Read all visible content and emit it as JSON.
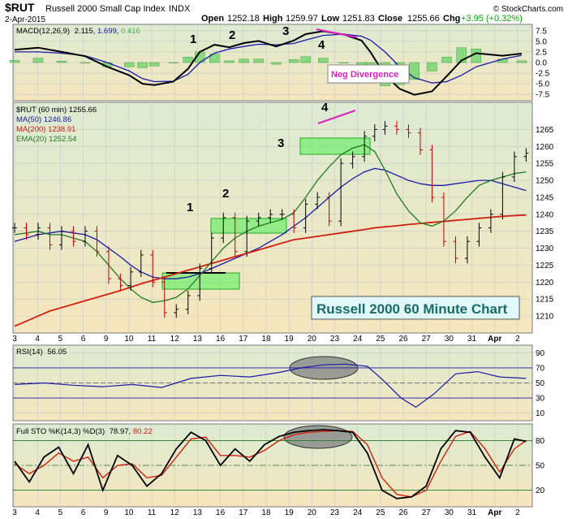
{
  "header": {
    "symbol": "$RUT",
    "name": "Russell 2000 Small Cap Index",
    "exchange": "INDX",
    "date": "2-Apr-2015",
    "open_label": "Open",
    "open": "1252.18",
    "high_label": "High",
    "high": "1259.97",
    "low_label": "Low",
    "low": "1251.83",
    "close_label": "Close",
    "close": "1255.66",
    "chg_label": "Chg",
    "chg": "+3.95 (+0.32%)",
    "brand": "© StockCharts.com",
    "up_color": "#00aa00"
  },
  "chart_data": [
    {
      "type": "line",
      "panel": "macd",
      "legend": {
        "name": "MACD(12,26,9)",
        "macd": "2.115",
        "signal": "1.699",
        "hist": "0.416"
      },
      "ylim": [
        -9,
        9
      ],
      "ticks": [
        7.5,
        5.0,
        2.5,
        0.0,
        -2.5,
        -5.0,
        -7.5
      ],
      "tick_labels": [
        "7.5",
        "5.0",
        "2.5",
        "0.0",
        "-2.5",
        "-5.0",
        "-7.5"
      ],
      "x": [
        0,
        1.6,
        3.2,
        4.8,
        6.3,
        7.8,
        8.7,
        9.5,
        10.8,
        11.8,
        12.6,
        13.6,
        14.6,
        15.6,
        16.6,
        17.8,
        19,
        19.8,
        21,
        22.4,
        23.6,
        24.2,
        25.2,
        26.2,
        27.2,
        28.4,
        29.4,
        30.4,
        31.4,
        33.2,
        34.5
      ],
      "series": [
        {
          "values": [
            3,
            3.5,
            2.5,
            1.5,
            -1,
            -3,
            -5,
            -5.3,
            -4.5,
            -1.5,
            2.5,
            4.2,
            3.6,
            4.6,
            5.1,
            3.8,
            5.2,
            6.7,
            7.4,
            6.6,
            5.2,
            2.5,
            -3,
            -6.2,
            -7.6,
            -6.8,
            -3.2,
            0.5,
            2.2,
            1.6,
            2.1
          ]
        },
        {
          "values": [
            2.5,
            2.5,
            2.2,
            1.6,
            0,
            -2,
            -3.8,
            -4.5,
            -4.4,
            -2.8,
            0,
            2.2,
            3.2,
            3.8,
            4.3,
            4.2,
            4.5,
            5.3,
            6.4,
            6.7,
            6.2,
            5.3,
            2.5,
            -1,
            -3.6,
            -4.8,
            -4.5,
            -3,
            -1,
            0.8,
            1.7
          ]
        }
      ],
      "hist": [
        0.5,
        1,
        0.3,
        -0.1,
        -1,
        -1,
        -1.2,
        -0.8,
        -0.1,
        1.3,
        2.5,
        2,
        0.4,
        0.8,
        0.8,
        -0.4,
        0.7,
        1.4,
        1,
        -0.1,
        -1,
        -2.8,
        -5.5,
        -5.2,
        -4,
        -2,
        1.3,
        3.5,
        3.2,
        0.8,
        0.4
      ],
      "annotations": {
        "labels": [
          "1",
          "2",
          "3",
          "4"
        ],
        "note": "Neg Divergence"
      }
    },
    {
      "type": "line",
      "panel": "price",
      "legend": {
        "price": "$RUT (60 min) 1255.66",
        "ma50": "MA(50) 1246.86",
        "ma200": "MA(200) 1238.91",
        "ema20": "EMA(20) 1252.54"
      },
      "ylim": [
        1205,
        1273
      ],
      "ticks": [
        1265,
        1260,
        1255,
        1250,
        1245,
        1240,
        1235,
        1230,
        1225,
        1220,
        1215,
        1210
      ],
      "tick_labels": [
        "1265",
        "1260",
        "1255",
        "1250",
        "1245",
        "1240",
        "1235",
        "1230",
        "1225",
        "1220",
        "1215",
        "1210"
      ],
      "x": [
        0,
        0.8,
        1.6,
        2.4,
        3.2,
        4,
        4.8,
        5.6,
        6.4,
        7.2,
        7.9,
        8.6,
        9.4,
        10.2,
        11,
        11.8,
        12.6,
        13.4,
        14.2,
        15,
        15.8,
        16.6,
        17.4,
        18.2,
        19,
        19.8,
        20.6,
        21.4,
        22.2,
        23,
        23.8,
        24.5,
        25.2,
        26,
        26.8,
        27.6,
        28.4,
        29.2,
        30,
        30.8,
        31.6,
        32.4,
        33.2,
        34,
        34.8
      ],
      "series": [
        {
          "name": "$RUT",
          "values": [
            1236,
            1234,
            1236,
            1231,
            1235,
            1232,
            1235,
            1229,
            1221,
            1219,
            1223,
            1228,
            1220,
            1211,
            1212,
            1216,
            1224,
            1233,
            1239,
            1229,
            1238,
            1239,
            1240,
            1240,
            1236,
            1243,
            1245,
            1238,
            1255,
            1257,
            1263,
            1265,
            1266,
            1265,
            1264,
            1259,
            1245,
            1232,
            1227,
            1232,
            1236,
            1240,
            1251,
            1257,
            1258
          ]
        },
        {
          "name": "MA(50)",
          "values": [
            1232,
            1233,
            1234,
            1234.5,
            1235,
            1234.5,
            1234,
            1232.5,
            1230,
            1227.5,
            1225,
            1223,
            1221.5,
            1221,
            1221,
            1221.5,
            1222.5,
            1224,
            1225.5,
            1227,
            1228.5,
            1230,
            1232,
            1234,
            1236.5,
            1239,
            1242,
            1245,
            1248,
            1250.5,
            1252.5,
            1253.5,
            1253,
            1251.5,
            1250,
            1249,
            1248.5,
            1248.5,
            1249,
            1249.5,
            1250,
            1250,
            1249,
            1248,
            1247
          ]
        },
        {
          "name": "MA(200)",
          "values": [
            1207,
            1208.5,
            1210,
            1211.5,
            1212.5,
            1213.5,
            1214.5,
            1215.5,
            1216.5,
            1217.5,
            1218.5,
            1219.5,
            1220.5,
            1221.5,
            1222.5,
            1223.5,
            1224.5,
            1225.5,
            1226.5,
            1227.5,
            1228.5,
            1229.5,
            1230.5,
            1231.5,
            1232.5,
            1233,
            1233.5,
            1234,
            1234.5,
            1235,
            1235.5,
            1236,
            1236.3,
            1236.6,
            1237,
            1237.3,
            1237.6,
            1237.9,
            1238.2,
            1238.5,
            1238.8,
            1239.1,
            1239.4,
            1239.6,
            1239.8
          ]
        },
        {
          "name": "EMA(20)",
          "values": [
            1234,
            1234.5,
            1235,
            1234,
            1234,
            1233,
            1232,
            1229,
            1225,
            1221,
            1218,
            1215.5,
            1214,
            1214.5,
            1215.5,
            1218,
            1222,
            1226,
            1230,
            1233,
            1235,
            1236.5,
            1237.5,
            1238.5,
            1240.5,
            1245,
            1250,
            1254,
            1257.5,
            1259.5,
            1260.5,
            1258.5,
            1253,
            1246,
            1241,
            1237.5,
            1236.5,
            1238,
            1241,
            1245,
            1248.5,
            1250,
            1251,
            1252,
            1252.5
          ]
        }
      ],
      "annotations": {
        "labels": [
          "1",
          "2",
          "3",
          "4"
        ],
        "note": "Russell 2000 60 Minute Chart"
      }
    },
    {
      "type": "line",
      "panel": "rsi",
      "legend": {
        "name": "RSI(14)",
        "value": "56.05"
      },
      "ylim": [
        0,
        100
      ],
      "ticks": [
        90,
        70,
        50,
        30,
        10
      ],
      "tick_labels": [
        "90",
        "70",
        "50",
        "30",
        "10"
      ],
      "x": [
        0,
        2,
        4,
        6,
        8,
        10,
        12,
        14,
        16,
        18,
        19.5,
        21,
        22.5,
        24,
        25,
        26.3,
        27.3,
        28.5,
        30,
        31.5,
        33,
        34.8
      ],
      "series": [
        {
          "name": "RSI(14)",
          "values": [
            48,
            50,
            47,
            45,
            48,
            44,
            56,
            60,
            58,
            64,
            70,
            74,
            75,
            72,
            55,
            30,
            18,
            35,
            62,
            65,
            58,
            56
          ]
        }
      ]
    },
    {
      "type": "line",
      "panel": "stochastic",
      "legend": {
        "name": "Full STO %K(14,3) %D(3)",
        "k": "78.97",
        "d": "80.22"
      },
      "ylim": [
        0,
        100
      ],
      "ticks": [
        80,
        50,
        20
      ],
      "tick_labels": [
        "80",
        "50",
        "20"
      ],
      "x": [
        0,
        1,
        2,
        3,
        4,
        5,
        6,
        7,
        8,
        9,
        10,
        11,
        12,
        13,
        14,
        15,
        16,
        17,
        18,
        19,
        20,
        21,
        22,
        23,
        24,
        25,
        26,
        27,
        28,
        29,
        30,
        31,
        32,
        33,
        34,
        34.8
      ],
      "series": [
        {
          "name": "%K",
          "values": [
            55,
            30,
            60,
            72,
            40,
            75,
            20,
            62,
            50,
            25,
            40,
            70,
            90,
            80,
            50,
            70,
            55,
            75,
            85,
            90,
            92,
            93,
            92,
            90,
            65,
            20,
            10,
            12,
            25,
            70,
            92,
            90,
            60,
            35,
            82,
            79
          ]
        },
        {
          "name": "%D",
          "values": [
            52,
            40,
            50,
            65,
            55,
            60,
            35,
            50,
            52,
            35,
            38,
            60,
            82,
            84,
            62,
            62,
            60,
            68,
            80,
            87,
            90,
            91,
            92,
            91,
            75,
            35,
            15,
            12,
            20,
            55,
            85,
            91,
            70,
            42,
            70,
            80
          ]
        }
      ]
    }
  ],
  "x_axis": {
    "tick_labels": [
      "3",
      "4",
      "5",
      "6",
      "9",
      "10",
      "11",
      "12",
      "13",
      "16",
      "17",
      "18",
      "19",
      "20",
      "23",
      "24",
      "25",
      "26",
      "27",
      "30",
      "31",
      "Apr",
      "2"
    ],
    "tick_x": [
      0,
      1,
      2,
      3,
      4,
      5,
      6,
      7,
      8,
      9,
      10,
      11,
      12,
      13,
      14,
      15,
      16,
      17,
      18,
      19,
      20,
      21,
      22
    ]
  }
}
